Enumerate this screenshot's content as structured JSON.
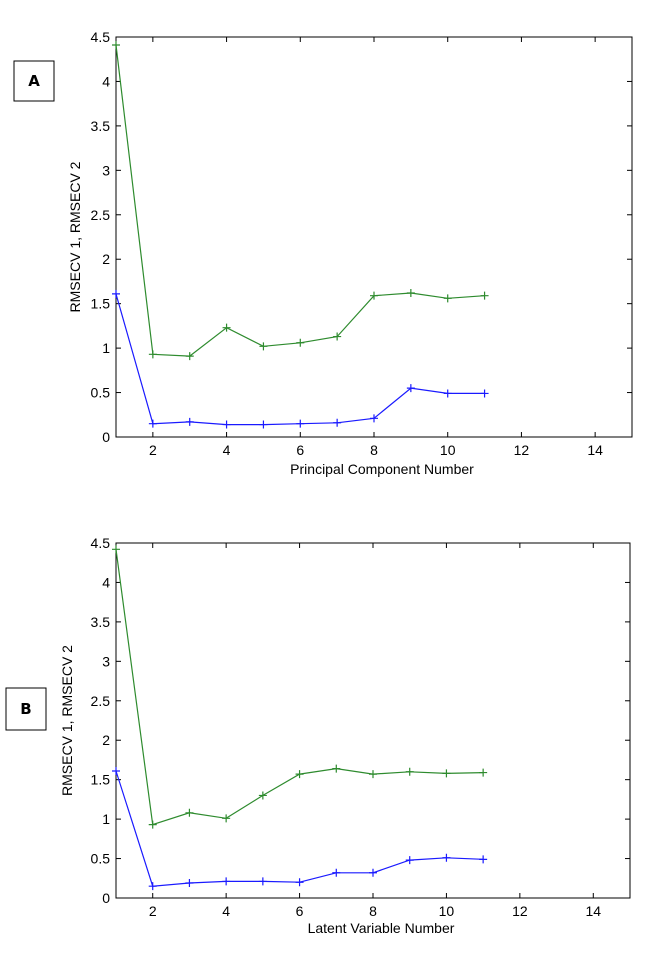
{
  "panels": [
    {
      "label": "A"
    },
    {
      "label": "B"
    }
  ],
  "chart_data": [
    {
      "type": "line",
      "panel": "A",
      "xlabel": "Principal Component Number",
      "ylabel": "RMSECV 1, RMSECV 2",
      "xlim": [
        1,
        15
      ],
      "ylim": [
        0,
        4.5
      ],
      "xticks": [
        2,
        4,
        6,
        8,
        10,
        12,
        14
      ],
      "yticks": [
        0,
        0.5,
        1,
        1.5,
        2,
        2.5,
        3,
        3.5,
        4,
        4.5
      ],
      "x": [
        1,
        2,
        3,
        4,
        5,
        6,
        7,
        8,
        9,
        10,
        11
      ],
      "grid": false,
      "marker": "+",
      "series": [
        {
          "values": [
            4.41,
            0.93,
            0.91,
            1.23,
            1.02,
            1.06,
            1.13,
            1.59,
            1.62,
            1.56,
            1.59
          ],
          "color": "#2e8b2e"
        },
        {
          "values": [
            1.61,
            0.15,
            0.17,
            0.14,
            0.14,
            0.15,
            0.16,
            0.21,
            0.55,
            0.49,
            0.49
          ],
          "color": "#1a1aff"
        }
      ]
    },
    {
      "type": "line",
      "panel": "B",
      "xlabel": "Latent Variable Number",
      "ylabel": "RMSECV 1, RMSECV 2",
      "xlim": [
        1,
        15
      ],
      "ylim": [
        0,
        4.5
      ],
      "xticks": [
        2,
        4,
        6,
        8,
        10,
        12,
        14
      ],
      "yticks": [
        0,
        0.5,
        1,
        1.5,
        2,
        2.5,
        3,
        3.5,
        4,
        4.5
      ],
      "x": [
        1,
        2,
        3,
        4,
        5,
        6,
        7,
        8,
        9,
        10,
        11
      ],
      "grid": false,
      "marker": "+",
      "series": [
        {
          "values": [
            4.42,
            0.93,
            1.08,
            1.01,
            1.3,
            1.57,
            1.64,
            1.57,
            1.6,
            1.58,
            1.59
          ],
          "color": "#2e8b2e"
        },
        {
          "values": [
            1.61,
            0.15,
            0.19,
            0.21,
            0.21,
            0.2,
            0.32,
            0.32,
            0.48,
            0.51,
            0.49
          ],
          "color": "#1a1aff"
        }
      ]
    }
  ]
}
